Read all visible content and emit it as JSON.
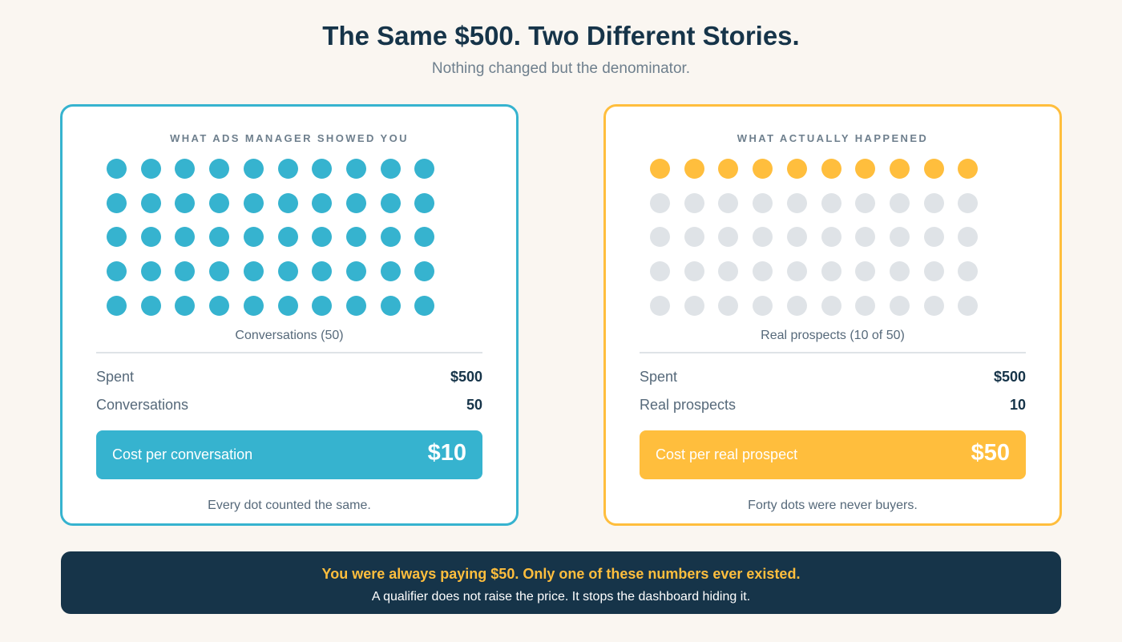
{
  "header": {
    "title": "The Same $500. Two Different Stories.",
    "subtitle": "Nothing changed but the denominator."
  },
  "panels": {
    "left": {
      "heading": "WHAT ADS MANAGER SHOWED YOU",
      "dots_total": 50,
      "dots_highlighted": 50,
      "highlight_color": "#36b3cf",
      "muted_color": "#dfe3e7",
      "grid_caption": "Conversations (50)",
      "rows": [
        {
          "label": "Spent",
          "value": "$500"
        },
        {
          "label": "Conversations",
          "value": "50"
        }
      ],
      "cost_label": "Cost per conversation",
      "cost_value": "$10",
      "footnote": "Every dot counted the same."
    },
    "right": {
      "heading": "WHAT ACTUALLY HAPPENED",
      "dots_total": 50,
      "dots_highlighted": 10,
      "highlight_color": "#ffbe3d",
      "muted_color": "#dfe3e7",
      "grid_caption": "Real prospects (10 of 50)",
      "rows": [
        {
          "label": "Spent",
          "value": "$500"
        },
        {
          "label": "Real prospects",
          "value": "10"
        }
      ],
      "cost_label": "Cost per real prospect",
      "cost_value": "$50",
      "footnote": "Forty dots were never buyers."
    }
  },
  "banner": {
    "headline": "You were always paying $50. Only one of these numbers ever existed.",
    "body": "A qualifier does not raise the price. It stops the dashboard hiding it."
  }
}
